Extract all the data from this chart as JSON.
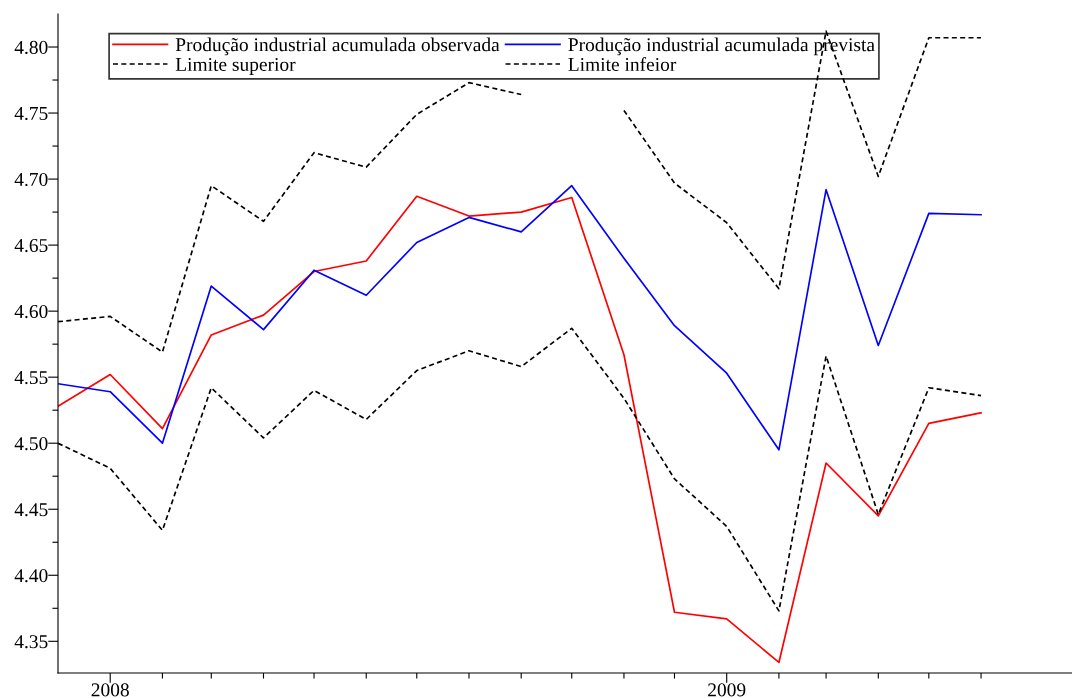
{
  "chart_data": {
    "type": "line",
    "x": [
      "2007-12",
      "2008-01",
      "2008-02",
      "2008-03",
      "2008-04",
      "2008-05",
      "2008-06",
      "2008-07",
      "2008-08",
      "2008-09",
      "2008-10",
      "2008-11",
      "2008-12",
      "2009-01",
      "2009-02",
      "2009-03",
      "2009-04",
      "2009-05",
      "2009-06"
    ],
    "series": [
      {
        "name": "Produção industrial acumulada observada",
        "color": "#ff0000",
        "line_style": "solid",
        "values": [
          4.528,
          4.552,
          4.511,
          4.582,
          4.597,
          4.63,
          4.638,
          4.687,
          4.672,
          4.675,
          4.686,
          4.567,
          4.372,
          4.367,
          4.334,
          4.485,
          4.445,
          4.515,
          4.523
        ]
      },
      {
        "name": "Produção industrial acumulada prevista",
        "color": "#0000ff",
        "line_style": "solid",
        "values": [
          4.545,
          4.539,
          4.5,
          4.619,
          4.586,
          4.631,
          4.612,
          4.652,
          4.671,
          4.66,
          4.695,
          4.64,
          4.589,
          4.553,
          4.495,
          4.692,
          4.574,
          4.674,
          4.673
        ]
      },
      {
        "name": "Limite superior",
        "color": "#000000",
        "line_style": "dashed",
        "values": [
          4.592,
          4.596,
          4.569,
          4.695,
          4.668,
          4.72,
          4.709,
          4.749,
          4.773,
          4.764,
          null,
          4.752,
          4.697,
          4.667,
          4.617,
          4.812,
          4.702,
          4.807,
          4.807
        ]
      },
      {
        "name": "Limite infeior",
        "color": "#000000",
        "line_style": "dashed",
        "values": [
          4.5,
          4.481,
          4.434,
          4.542,
          4.504,
          4.54,
          4.518,
          4.555,
          4.57,
          4.558,
          4.587,
          4.534,
          4.473,
          4.437,
          4.373,
          4.566,
          4.446,
          4.542,
          4.536
        ]
      }
    ],
    "xlim": [
      "2007-12-01",
      "2009-07-25"
    ],
    "xticks": [
      {
        "value": "2008-01",
        "label": "2008"
      },
      {
        "value": "2008-02",
        "label": null
      },
      {
        "value": "2008-03",
        "label": null
      },
      {
        "value": "2008-04",
        "label": null
      },
      {
        "value": "2008-05",
        "label": null
      },
      {
        "value": "2008-06",
        "label": null
      },
      {
        "value": "2008-07",
        "label": null
      },
      {
        "value": "2008-08",
        "label": null
      },
      {
        "value": "2008-09",
        "label": null
      },
      {
        "value": "2008-10",
        "label": null
      },
      {
        "value": "2008-11",
        "label": null
      },
      {
        "value": "2008-12",
        "label": null
      },
      {
        "value": "2009-01",
        "label": "2009"
      },
      {
        "value": "2009-02",
        "label": null
      },
      {
        "value": "2009-03",
        "label": null
      },
      {
        "value": "2009-04",
        "label": null
      },
      {
        "value": "2009-05",
        "label": null
      },
      {
        "value": "2009-06",
        "label": null
      }
    ],
    "ylim": [
      4.326,
      4.825
    ],
    "yticks": [
      {
        "value": 4.35,
        "label": "4.35"
      },
      {
        "value": 4.375,
        "label": null
      },
      {
        "value": 4.4,
        "label": "4.40"
      },
      {
        "value": 4.425,
        "label": null
      },
      {
        "value": 4.45,
        "label": "4.45"
      },
      {
        "value": 4.475,
        "label": null
      },
      {
        "value": 4.5,
        "label": "4.50"
      },
      {
        "value": 4.525,
        "label": null
      },
      {
        "value": 4.55,
        "label": "4.55"
      },
      {
        "value": 4.575,
        "label": null
      },
      {
        "value": 4.6,
        "label": "4.60"
      },
      {
        "value": 4.625,
        "label": null
      },
      {
        "value": 4.65,
        "label": "4.65"
      },
      {
        "value": 4.675,
        "label": null
      },
      {
        "value": 4.7,
        "label": "4.70"
      },
      {
        "value": 4.725,
        "label": null
      },
      {
        "value": 4.75,
        "label": "4.75"
      },
      {
        "value": 4.775,
        "label": null
      },
      {
        "value": 4.8,
        "label": "4.80"
      }
    ],
    "grid": false,
    "legend": "top",
    "marker": "none"
  }
}
